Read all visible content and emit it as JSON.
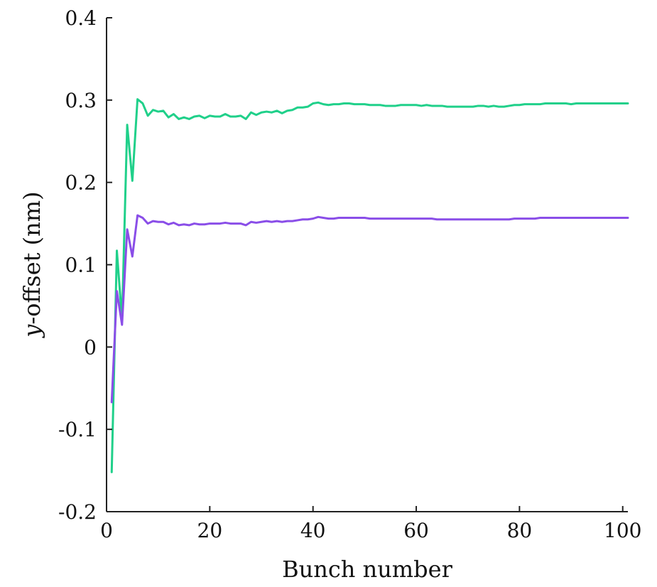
{
  "chart_data": {
    "type": "line",
    "title": "",
    "xlabel": "Bunch number",
    "ylabel_var": "y",
    "ylabel_rest": "-offset (nm)",
    "xlim": [
      0,
      101
    ],
    "ylim": [
      -0.2,
      0.4
    ],
    "x_ticks": [
      0,
      20,
      40,
      60,
      80,
      100
    ],
    "x_tick_labels": [
      "0",
      "20",
      "40",
      "60",
      "80",
      "100"
    ],
    "y_ticks": [
      -0.2,
      -0.1,
      0,
      0.1,
      0.2,
      0.3,
      0.4
    ],
    "y_tick_labels": [
      "-0.2",
      "-0.1",
      "0",
      "0.1",
      "0.2",
      "0.3",
      "0.4"
    ],
    "grid": false,
    "legend": "none",
    "series": [
      {
        "color": "#20d08a",
        "x": [
          1,
          2,
          3,
          4,
          5,
          6,
          7,
          8,
          9,
          10,
          11,
          12,
          13,
          14,
          15,
          16,
          17,
          18,
          19,
          20,
          21,
          22,
          23,
          24,
          25,
          26,
          27,
          28,
          29,
          30,
          31,
          32,
          33,
          34,
          35,
          36,
          37,
          38,
          39,
          40,
          41,
          42,
          43,
          44,
          45,
          46,
          47,
          48,
          49,
          50,
          51,
          52,
          53,
          54,
          55,
          56,
          57,
          58,
          59,
          60,
          61,
          62,
          63,
          64,
          65,
          66,
          67,
          68,
          69,
          70,
          71,
          72,
          73,
          74,
          75,
          76,
          77,
          78,
          79,
          80,
          81,
          82,
          83,
          84,
          85,
          86,
          87,
          88,
          89,
          90,
          91,
          92,
          93,
          94,
          95,
          96,
          97,
          98,
          99,
          100,
          101
        ],
        "values": [
          -0.152,
          0.117,
          0.033,
          0.27,
          0.202,
          0.301,
          0.296,
          0.281,
          0.288,
          0.286,
          0.287,
          0.279,
          0.283,
          0.277,
          0.279,
          0.277,
          0.28,
          0.281,
          0.278,
          0.281,
          0.28,
          0.28,
          0.283,
          0.28,
          0.28,
          0.281,
          0.277,
          0.285,
          0.282,
          0.285,
          0.286,
          0.285,
          0.287,
          0.284,
          0.287,
          0.288,
          0.291,
          0.291,
          0.292,
          0.296,
          0.297,
          0.295,
          0.294,
          0.295,
          0.295,
          0.296,
          0.296,
          0.295,
          0.295,
          0.295,
          0.294,
          0.294,
          0.294,
          0.293,
          0.293,
          0.293,
          0.294,
          0.294,
          0.294,
          0.294,
          0.293,
          0.294,
          0.293,
          0.293,
          0.293,
          0.292,
          0.292,
          0.292,
          0.292,
          0.292,
          0.292,
          0.293,
          0.293,
          0.292,
          0.293,
          0.292,
          0.292,
          0.293,
          0.294,
          0.294,
          0.295,
          0.295,
          0.295,
          0.295,
          0.296,
          0.296,
          0.296,
          0.296,
          0.296,
          0.295,
          0.296,
          0.296,
          0.296,
          0.296,
          0.296,
          0.296,
          0.296,
          0.296,
          0.296,
          0.296,
          0.296
        ]
      },
      {
        "color": "#8a4ee8",
        "x": [
          1,
          2,
          3,
          4,
          5,
          6,
          7,
          8,
          9,
          10,
          11,
          12,
          13,
          14,
          15,
          16,
          17,
          18,
          19,
          20,
          21,
          22,
          23,
          24,
          25,
          26,
          27,
          28,
          29,
          30,
          31,
          32,
          33,
          34,
          35,
          36,
          37,
          38,
          39,
          40,
          41,
          42,
          43,
          44,
          45,
          46,
          47,
          48,
          49,
          50,
          51,
          52,
          53,
          54,
          55,
          56,
          57,
          58,
          59,
          60,
          61,
          62,
          63,
          64,
          65,
          66,
          67,
          68,
          69,
          70,
          71,
          72,
          73,
          74,
          75,
          76,
          77,
          78,
          79,
          80,
          81,
          82,
          83,
          84,
          85,
          86,
          87,
          88,
          89,
          90,
          91,
          92,
          93,
          94,
          95,
          96,
          97,
          98,
          99,
          100,
          101
        ],
        "values": [
          -0.067,
          0.068,
          0.027,
          0.143,
          0.11,
          0.16,
          0.157,
          0.15,
          0.153,
          0.152,
          0.152,
          0.149,
          0.151,
          0.148,
          0.149,
          0.148,
          0.15,
          0.149,
          0.149,
          0.15,
          0.15,
          0.15,
          0.151,
          0.15,
          0.15,
          0.15,
          0.148,
          0.152,
          0.151,
          0.152,
          0.153,
          0.152,
          0.153,
          0.152,
          0.153,
          0.153,
          0.154,
          0.155,
          0.155,
          0.156,
          0.158,
          0.157,
          0.156,
          0.156,
          0.157,
          0.157,
          0.157,
          0.157,
          0.157,
          0.157,
          0.156,
          0.156,
          0.156,
          0.156,
          0.156,
          0.156,
          0.156,
          0.156,
          0.156,
          0.156,
          0.156,
          0.156,
          0.156,
          0.155,
          0.155,
          0.155,
          0.155,
          0.155,
          0.155,
          0.155,
          0.155,
          0.155,
          0.155,
          0.155,
          0.155,
          0.155,
          0.155,
          0.155,
          0.156,
          0.156,
          0.156,
          0.156,
          0.156,
          0.157,
          0.157,
          0.157,
          0.157,
          0.157,
          0.157,
          0.157,
          0.157,
          0.157,
          0.157,
          0.157,
          0.157,
          0.157,
          0.157,
          0.157,
          0.157,
          0.157,
          0.157
        ]
      }
    ]
  }
}
